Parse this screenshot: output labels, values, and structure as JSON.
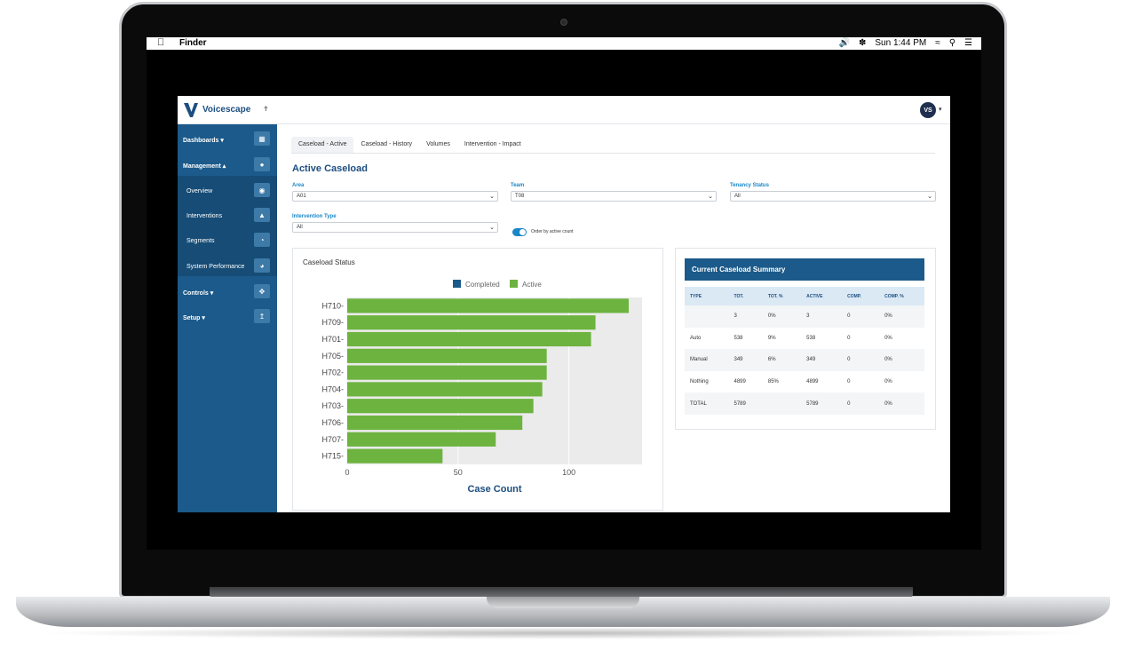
{
  "menubar": {
    "app_name": "Finder",
    "clock": "Sun 1:44 PM"
  },
  "app": {
    "brand": "Voicescape",
    "avatar_initials": "VS",
    "colors": {
      "primary": "#1b5a8a",
      "accent": "#1a86c8",
      "completed": "#1b5a8a",
      "active": "#6db33f"
    }
  },
  "sidebar": {
    "items": [
      {
        "label": "Dashboards",
        "icon": "dashboard-icon"
      },
      {
        "label": "Management",
        "icon": "management-icon"
      },
      {
        "label": "Overview",
        "icon": "eye-icon"
      },
      {
        "label": "Interventions",
        "icon": "triangle-icon"
      },
      {
        "label": "Segments",
        "icon": "pie-icon"
      },
      {
        "label": "System Performance",
        "icon": "globe-icon"
      },
      {
        "label": "Controls",
        "icon": "move-icon"
      },
      {
        "label": "Setup",
        "icon": "setup-icon"
      }
    ]
  },
  "tabs": [
    "Caseload - Active",
    "Caseload - History",
    "Volumes",
    "Intervention - Impact"
  ],
  "page": {
    "title": "Active Caseload",
    "filters": {
      "area": {
        "label": "Area",
        "value": "A01"
      },
      "team": {
        "label": "Team",
        "value": "T08"
      },
      "tenancy": {
        "label": "Tenancy Status",
        "value": "All"
      },
      "intervention": {
        "label": "Intervention Type",
        "value": "All"
      }
    },
    "toggle_label": "Order by active count"
  },
  "chart_data": {
    "type": "bar",
    "orientation": "horizontal",
    "title": "Caseload Status",
    "xlabel": "Case Count",
    "ylabel": "",
    "categories": [
      "H710",
      "H709",
      "H701",
      "H705",
      "H702",
      "H704",
      "H703",
      "H706",
      "H707",
      "H715"
    ],
    "series": [
      {
        "name": "Completed",
        "values": [
          0,
          0,
          0,
          0,
          0,
          0,
          0,
          0,
          0,
          0
        ]
      },
      {
        "name": "Active",
        "values": [
          127,
          112,
          110,
          90,
          90,
          88,
          84,
          79,
          67,
          43
        ]
      }
    ],
    "xlim": [
      0,
      133
    ],
    "xticks": [
      0,
      50,
      100
    ],
    "legend": "top"
  },
  "summary": {
    "title": "Current Caseload Summary",
    "columns": [
      "TYPE",
      "TOT.",
      "TOT. %",
      "ACTIVE",
      "COMP.",
      "COMP. %"
    ],
    "rows": [
      [
        "",
        "3",
        "0%",
        "3",
        "0",
        "0%"
      ],
      [
        "Auto",
        "538",
        "9%",
        "538",
        "0",
        "0%"
      ],
      [
        "Manual",
        "349",
        "6%",
        "349",
        "0",
        "0%"
      ],
      [
        "Nothing",
        "4899",
        "85%",
        "4899",
        "0",
        "0%"
      ],
      [
        "TOTAL",
        "5789",
        "",
        "5789",
        "0",
        "0%"
      ]
    ]
  }
}
